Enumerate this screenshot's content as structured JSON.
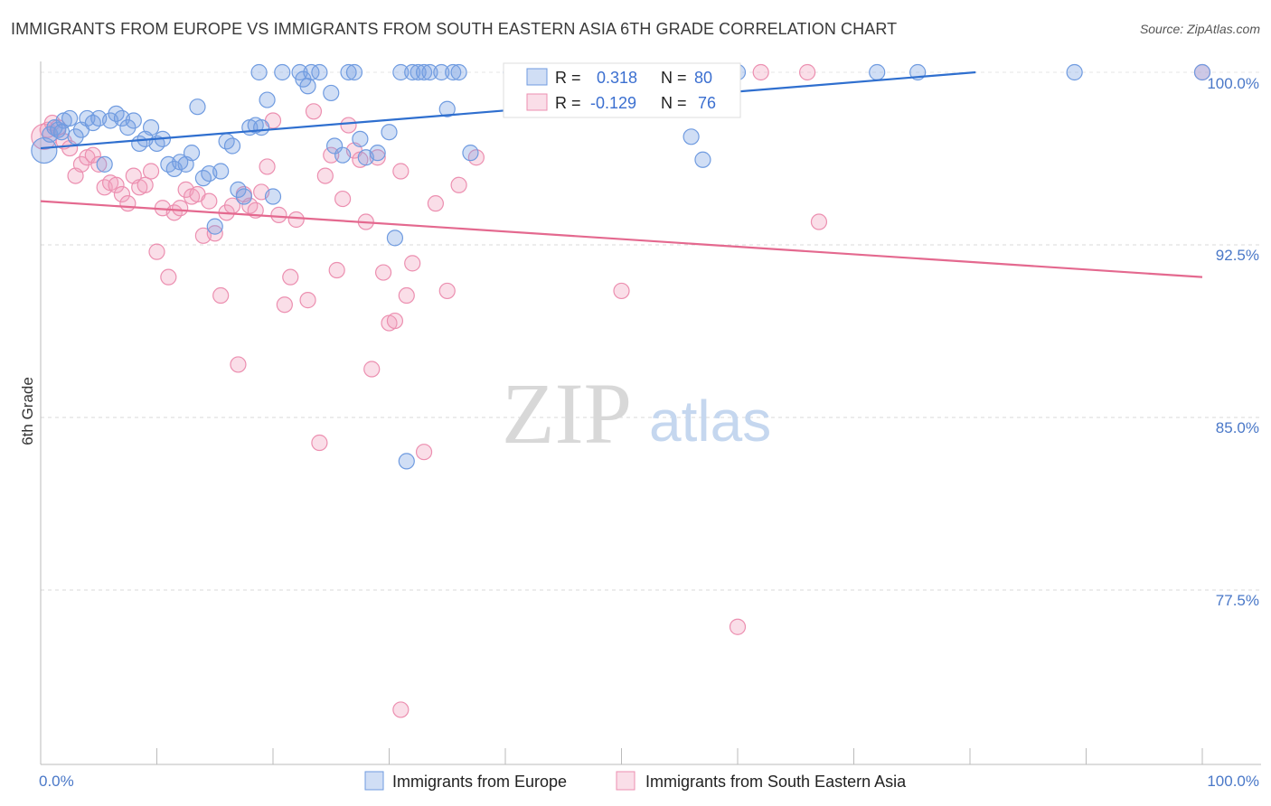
{
  "title": "IMMIGRANTS FROM EUROPE VS IMMIGRANTS FROM SOUTH EASTERN ASIA 6TH GRADE CORRELATION CHART",
  "source": "Source: ZipAtlas.com",
  "watermark": {
    "zip": "ZIP",
    "atlas": "atlas"
  },
  "colors": {
    "europe": "#6f9be0",
    "europe_fill": "rgba(120,160,225,0.35)",
    "europe_line": "#2f6fcf",
    "asia": "#ec8fb0",
    "asia_fill": "rgba(240,160,190,0.35)",
    "asia_line": "#e4698f",
    "axis_label": "#4a78c8"
  },
  "legend_box": {
    "rows": [
      {
        "r_label": "R =",
        "r_value": "0.318",
        "n_label": "N =",
        "n_value": "80"
      },
      {
        "r_label": "R =",
        "r_value": "-0.129",
        "n_label": "N =",
        "n_value": "76"
      }
    ]
  },
  "chart_data": {
    "type": "scatter",
    "title": "IMMIGRANTS FROM EUROPE VS IMMIGRANTS FROM SOUTH EASTERN ASIA 6TH GRADE CORRELATION CHART",
    "xlabel": "",
    "ylabel": "6th Grade",
    "xlim": [
      0,
      100
    ],
    "ylim": [
      70.5,
      101.5
    ],
    "x_tick_labels": [
      "0.0%",
      "100.0%"
    ],
    "y_ticks": [
      77.5,
      85.0,
      92.5,
      100.0
    ],
    "y_tick_labels": [
      "77.5%",
      "85.0%",
      "92.5%",
      "100.0%"
    ],
    "grid": true,
    "legend": "bottom-center",
    "series": [
      {
        "name": "Immigrants from Europe",
        "R": 0.318,
        "N": 80,
        "trend": {
          "x": [
            0,
            100
          ],
          "y": [
            96.7,
            100.8
          ]
        },
        "points": [
          [
            0.3,
            96.6
          ],
          [
            0.8,
            97.3
          ],
          [
            1.2,
            97.6
          ],
          [
            1.5,
            97.5
          ],
          [
            2,
            97.9
          ],
          [
            2.5,
            98.0
          ],
          [
            3.5,
            97.5
          ],
          [
            4,
            98.0
          ],
          [
            4.5,
            97.8
          ],
          [
            5,
            98.0
          ],
          [
            5.5,
            96.0
          ],
          [
            6,
            97.9
          ],
          [
            6.5,
            98.2
          ],
          [
            7,
            98.0
          ],
          [
            7.5,
            97.6
          ],
          [
            8,
            97.9
          ],
          [
            8.5,
            96.9
          ],
          [
            9,
            97.1
          ],
          [
            9.5,
            97.6
          ],
          [
            10,
            96.9
          ],
          [
            10.5,
            97.1
          ],
          [
            11,
            96.0
          ],
          [
            11.5,
            95.8
          ],
          [
            12,
            96.1
          ],
          [
            12.5,
            96.0
          ],
          [
            13,
            96.5
          ],
          [
            13.5,
            98.5
          ],
          [
            14,
            95.4
          ],
          [
            14.5,
            95.6
          ],
          [
            15,
            93.3
          ],
          [
            15.5,
            95.7
          ],
          [
            16,
            97.0
          ],
          [
            16.5,
            96.8
          ],
          [
            17,
            94.9
          ],
          [
            17.5,
            94.6
          ],
          [
            18,
            97.6
          ],
          [
            18.5,
            97.7
          ],
          [
            19,
            97.6
          ],
          [
            19.5,
            98.8
          ],
          [
            20,
            94.6
          ],
          [
            18.8,
            100.0
          ],
          [
            20.8,
            100.0
          ],
          [
            22.3,
            100.0
          ],
          [
            22.6,
            99.7
          ],
          [
            23.0,
            99.4
          ],
          [
            23.3,
            100.0
          ],
          [
            24.0,
            100.0
          ],
          [
            25.0,
            99.1
          ],
          [
            25.3,
            96.8
          ],
          [
            26,
            96.4
          ],
          [
            26.5,
            100.0
          ],
          [
            27,
            100.0
          ],
          [
            27.5,
            97.1
          ],
          [
            28,
            96.3
          ],
          [
            29,
            96.5
          ],
          [
            30,
            97.4
          ],
          [
            30.5,
            92.8
          ],
          [
            31,
            100.0
          ],
          [
            31.5,
            83.1
          ],
          [
            32,
            100.0
          ],
          [
            32.5,
            100.0
          ],
          [
            33,
            100.0
          ],
          [
            33.5,
            100.0
          ],
          [
            34.5,
            100.0
          ],
          [
            35,
            98.4
          ],
          [
            35.5,
            100.0
          ],
          [
            36,
            100.0
          ],
          [
            37,
            96.5
          ],
          [
            40.5,
            100.0
          ],
          [
            47,
            100.0
          ],
          [
            50,
            100.0
          ],
          [
            56,
            97.2
          ],
          [
            57,
            96.2
          ],
          [
            60,
            100.0
          ],
          [
            72,
            100.0
          ],
          [
            75.5,
            100.0
          ],
          [
            89,
            100.0
          ],
          [
            100,
            100.0
          ],
          [
            1.8,
            97.4
          ],
          [
            3,
            97.2
          ]
        ]
      },
      {
        "name": "Immigrants from South Eastern Asia",
        "R": -0.129,
        "N": 76,
        "trend": {
          "x": [
            0,
            100
          ],
          "y": [
            94.4,
            91.1
          ]
        },
        "points": [
          [
            0.3,
            97.2
          ],
          [
            0.6,
            97.5
          ],
          [
            1,
            97.8
          ],
          [
            1.5,
            97.6
          ],
          [
            2,
            97.0
          ],
          [
            2.5,
            96.7
          ],
          [
            3,
            95.5
          ],
          [
            3.5,
            96.0
          ],
          [
            4,
            96.3
          ],
          [
            4.5,
            96.4
          ],
          [
            5,
            96.0
          ],
          [
            5.5,
            95.0
          ],
          [
            6,
            95.2
          ],
          [
            6.5,
            95.1
          ],
          [
            7,
            94.7
          ],
          [
            7.5,
            94.3
          ],
          [
            8,
            95.5
          ],
          [
            8.5,
            95.0
          ],
          [
            9,
            95.1
          ],
          [
            9.5,
            95.7
          ],
          [
            10,
            92.2
          ],
          [
            10.5,
            94.1
          ],
          [
            11,
            91.1
          ],
          [
            11.5,
            93.9
          ],
          [
            12,
            94.1
          ],
          [
            12.5,
            94.9
          ],
          [
            13,
            94.6
          ],
          [
            13.5,
            94.7
          ],
          [
            14,
            92.9
          ],
          [
            14.5,
            94.4
          ],
          [
            15,
            93.0
          ],
          [
            15.5,
            90.3
          ],
          [
            16,
            93.9
          ],
          [
            16.5,
            94.2
          ],
          [
            17,
            87.3
          ],
          [
            17.5,
            94.7
          ],
          [
            18,
            94.2
          ],
          [
            18.5,
            94.0
          ],
          [
            19,
            94.8
          ],
          [
            19.5,
            95.9
          ],
          [
            20,
            97.9
          ],
          [
            20.5,
            93.8
          ],
          [
            21,
            89.9
          ],
          [
            21.5,
            91.1
          ],
          [
            22,
            93.6
          ],
          [
            23,
            90.1
          ],
          [
            23.5,
            98.3
          ],
          [
            24,
            83.9
          ],
          [
            24.5,
            95.5
          ],
          [
            25,
            96.4
          ],
          [
            25.5,
            91.4
          ],
          [
            26,
            94.5
          ],
          [
            26.5,
            97.7
          ],
          [
            27,
            96.6
          ],
          [
            27.5,
            96.2
          ],
          [
            28,
            93.5
          ],
          [
            28.5,
            87.1
          ],
          [
            29,
            96.3
          ],
          [
            29.5,
            91.3
          ],
          [
            30,
            89.1
          ],
          [
            30.5,
            89.2
          ],
          [
            31,
            95.7
          ],
          [
            31.5,
            90.3
          ],
          [
            32,
            91.7
          ],
          [
            33,
            83.5
          ],
          [
            34,
            94.3
          ],
          [
            35,
            90.5
          ],
          [
            36,
            95.1
          ],
          [
            37.5,
            96.3
          ],
          [
            50,
            90.5
          ],
          [
            60,
            75.9
          ],
          [
            62,
            100.0
          ],
          [
            67,
            93.5
          ],
          [
            66,
            100.0
          ],
          [
            31,
            72.3
          ],
          [
            100,
            100.0
          ]
        ]
      }
    ]
  },
  "bottom_legend": [
    {
      "label": "Immigrants from Europe"
    },
    {
      "label": "Immigrants from South Eastern Asia"
    }
  ]
}
